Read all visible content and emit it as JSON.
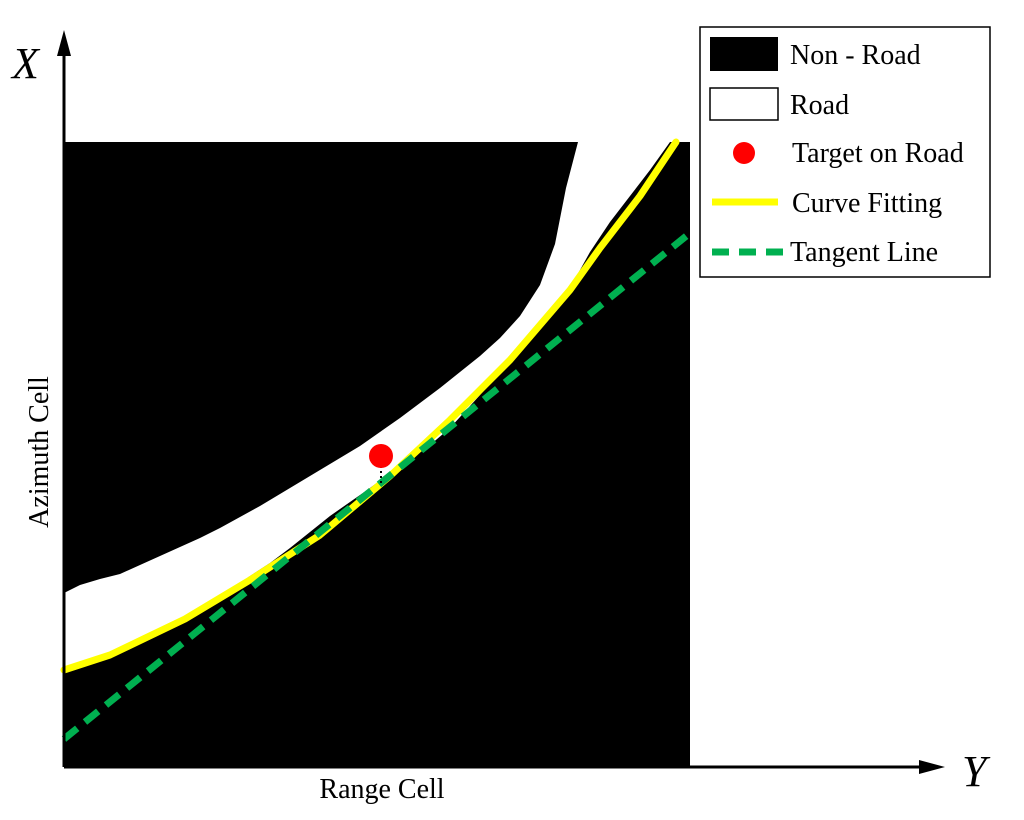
{
  "colors": {
    "non_road": "#000000",
    "road": "#ffffff",
    "target": "#ff0000",
    "curve_fitting": "#ffff00",
    "tangent_line": "#00b050",
    "axis": "#000000"
  },
  "axes": {
    "x_letter": "X",
    "y_letter": "Y",
    "vertical_label": "Azimuth Cell",
    "horizontal_label": "Range Cell"
  },
  "legend": {
    "placement": "top-right",
    "items": [
      {
        "label": "Non - Road",
        "symbol": "filled-black-box"
      },
      {
        "label": "Road",
        "symbol": "white-box"
      },
      {
        "label": "Target on Road",
        "symbol": "red-dot"
      },
      {
        "label": "Curve Fitting",
        "symbol": "yellow-solid-line"
      },
      {
        "label": "Tangent Line",
        "symbol": "green-dashed-line"
      }
    ]
  }
}
